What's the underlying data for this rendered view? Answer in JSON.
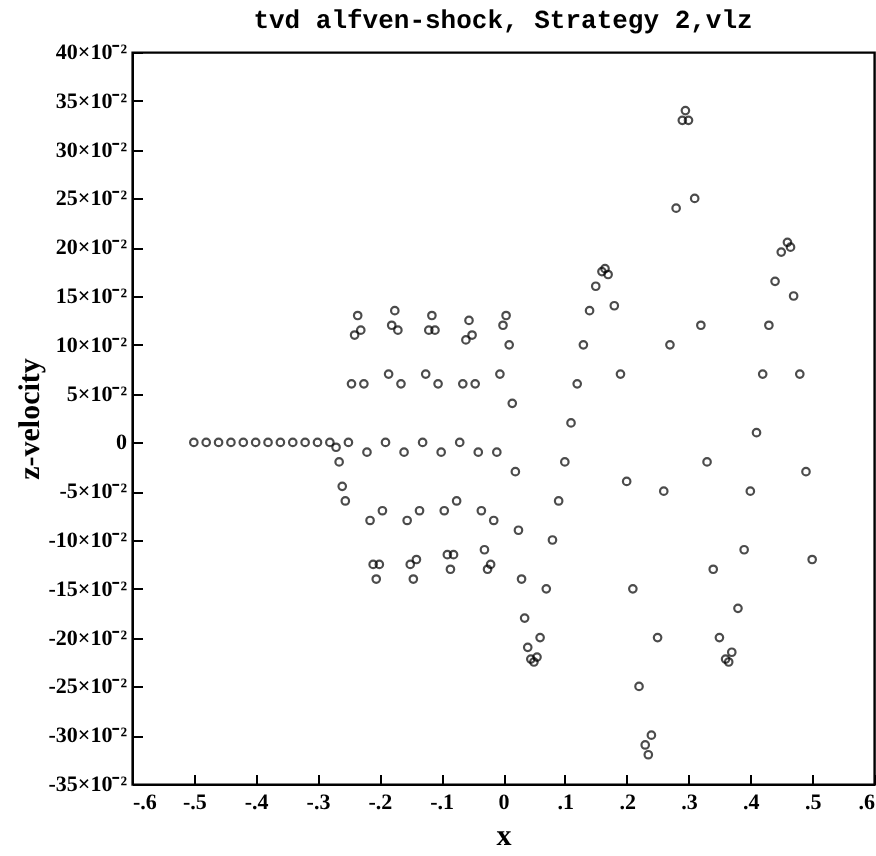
{
  "chart_data": {
    "type": "scatter",
    "title": "tvd alfven-shock, Strategy 2,vlz",
    "xlabel": "x",
    "ylabel": "z-velocity",
    "color": "#000000",
    "marker": "circle",
    "x": [
      -0.5,
      -0.48,
      -0.46,
      -0.44,
      -0.42,
      -0.4,
      -0.38,
      -0.36,
      -0.34,
      -0.32,
      -0.3,
      -0.28,
      -0.27,
      -0.265,
      -0.26,
      -0.255,
      -0.25,
      -0.245,
      -0.24,
      -0.235,
      -0.23,
      -0.225,
      -0.22,
      -0.215,
      -0.21,
      -0.205,
      -0.2,
      -0.195,
      -0.19,
      -0.185,
      -0.18,
      -0.175,
      -0.17,
      -0.165,
      -0.16,
      -0.155,
      -0.15,
      -0.145,
      -0.14,
      -0.135,
      -0.13,
      -0.125,
      -0.12,
      -0.115,
      -0.11,
      -0.105,
      -0.1,
      -0.095,
      -0.09,
      -0.085,
      -0.08,
      -0.075,
      -0.07,
      -0.065,
      -0.06,
      -0.055,
      -0.05,
      -0.045,
      -0.04,
      -0.035,
      -0.03,
      -0.025,
      -0.02,
      -0.015,
      -0.01,
      -0.005,
      0.0,
      0.005,
      0.01,
      0.015,
      0.02,
      0.025,
      0.03,
      0.035,
      0.04,
      0.045,
      0.05,
      0.055,
      0.06,
      0.07,
      0.08,
      0.09,
      0.1,
      0.11,
      0.12,
      0.13,
      0.14,
      0.15,
      0.16,
      0.165,
      0.17,
      0.18,
      0.19,
      0.2,
      0.21,
      0.22,
      0.23,
      0.235,
      0.24,
      0.25,
      0.26,
      0.27,
      0.28,
      0.29,
      0.295,
      0.3,
      0.31,
      0.32,
      0.33,
      0.34,
      0.35,
      0.36,
      0.365,
      0.37,
      0.38,
      0.39,
      0.4,
      0.41,
      0.42,
      0.43,
      0.44,
      0.45,
      0.46,
      0.465,
      0.47,
      0.48,
      0.49,
      0.5
    ],
    "values": [
      0,
      0,
      0,
      0,
      0,
      0,
      0,
      0,
      0,
      0,
      0,
      0,
      -0.005,
      -0.02,
      -0.045,
      -0.06,
      0.0,
      0.06,
      0.11,
      0.13,
      0.115,
      0.06,
      -0.01,
      -0.08,
      -0.125,
      -0.14,
      -0.125,
      -0.07,
      0.0,
      0.07,
      0.12,
      0.135,
      0.115,
      0.06,
      -0.01,
      -0.08,
      -0.125,
      -0.14,
      -0.12,
      -0.07,
      0.0,
      0.07,
      0.115,
      0.13,
      0.115,
      0.06,
      -0.01,
      -0.07,
      -0.115,
      -0.13,
      -0.115,
      -0.06,
      0.0,
      0.06,
      0.105,
      0.125,
      0.11,
      0.06,
      -0.01,
      -0.07,
      -0.11,
      -0.13,
      -0.125,
      -0.08,
      -0.01,
      0.07,
      0.12,
      0.13,
      0.1,
      0.04,
      -0.03,
      -0.09,
      -0.14,
      -0.18,
      -0.21,
      -0.222,
      -0.225,
      -0.22,
      -0.2,
      -0.15,
      -0.1,
      -0.06,
      -0.02,
      0.02,
      0.06,
      0.1,
      0.135,
      0.16,
      0.175,
      0.178,
      0.172,
      0.14,
      0.07,
      -0.04,
      -0.15,
      -0.25,
      -0.31,
      -0.32,
      -0.3,
      -0.2,
      -0.05,
      0.1,
      0.24,
      0.33,
      0.34,
      0.33,
      0.25,
      0.12,
      -0.02,
      -0.13,
      -0.2,
      -0.222,
      -0.225,
      -0.215,
      -0.17,
      -0.11,
      -0.05,
      0.01,
      0.07,
      0.12,
      0.165,
      0.195,
      0.205,
      0.2,
      0.15,
      0.07,
      -0.03,
      -0.12
    ],
    "xlim": [
      -0.6,
      0.6
    ],
    "xticks": [
      {
        "value": -0.6,
        "label": "-.6"
      },
      {
        "value": -0.5,
        "label": "-.5"
      },
      {
        "value": -0.4,
        "label": "-.4"
      },
      {
        "value": -0.3,
        "label": "-.3"
      },
      {
        "value": -0.2,
        "label": "-.2"
      },
      {
        "value": -0.1,
        "label": "-.1"
      },
      0,
      {
        "value": 0.1,
        "label": ".1"
      },
      {
        "value": 0.2,
        "label": ".2"
      },
      {
        "value": 0.3,
        "label": ".3"
      },
      {
        "value": 0.4,
        "label": ".4"
      },
      {
        "value": 0.5,
        "label": ".5"
      },
      {
        "value": 0.6,
        "label": ".6"
      }
    ],
    "ylim": [
      -0.35,
      0.4
    ],
    "yticks": [
      {
        "value": -0.35,
        "label": "-35×10⁻²"
      },
      {
        "value": -0.3,
        "label": "-30×10⁻²"
      },
      {
        "value": -0.25,
        "label": "-25×10⁻²"
      },
      {
        "value": -0.2,
        "label": "-20×10⁻²"
      },
      {
        "value": -0.15,
        "label": "-15×10⁻²"
      },
      {
        "value": -0.1,
        "label": "-10×10⁻²"
      },
      {
        "value": -0.05,
        "label": "-5×10⁻²"
      },
      0,
      {
        "value": 0.05,
        "label": "5×10⁻²"
      },
      {
        "value": 0.1,
        "label": "10×10⁻²"
      },
      {
        "value": 0.15,
        "label": "15×10⁻²"
      },
      {
        "value": 0.2,
        "label": "20×10⁻²"
      },
      {
        "value": 0.25,
        "label": "25×10⁻²"
      },
      {
        "value": 0.3,
        "label": "30×10⁻²"
      },
      {
        "value": 0.35,
        "label": "35×10⁻²"
      },
      {
        "value": 0.4,
        "label": "40×10⁻²"
      }
    ]
  }
}
